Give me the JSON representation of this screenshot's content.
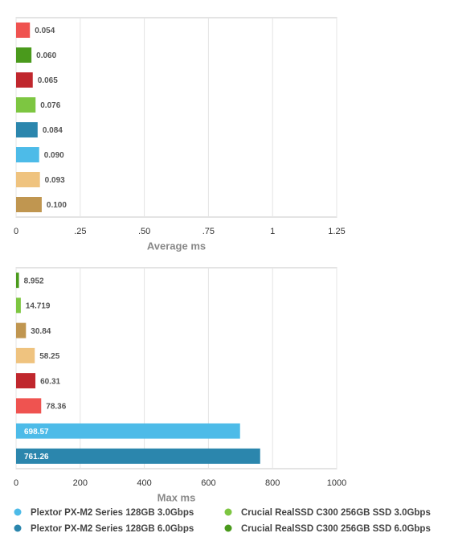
{
  "chart_data": [
    {
      "type": "bar",
      "orientation": "horizontal",
      "xlabel": "Average ms",
      "values": [
        0.054,
        0.06,
        0.065,
        0.076,
        0.084,
        0.09,
        0.093,
        0.1
      ],
      "value_labels": [
        "0.054",
        "0.060",
        "0.065",
        "0.076",
        "0.084",
        "0.090",
        "0.093",
        "0.100"
      ],
      "colors": [
        "#ef5350",
        "#4a9a1c",
        "#c0272d",
        "#7dc641",
        "#2b86ad",
        "#4dbbe8",
        "#efc37f",
        "#c09650"
      ],
      "xlim": [
        0,
        1.25
      ],
      "xticks": [
        0,
        {
          "value": 0.25,
          "label": ".25"
        },
        {
          "value": 0.5,
          "label": ".50"
        },
        {
          "value": 0.75,
          "label": ".75"
        },
        1,
        1.25
      ],
      "grid": true
    },
    {
      "type": "bar",
      "orientation": "horizontal",
      "xlabel": "Max ms",
      "values": [
        8.952,
        14.719,
        30.84,
        58.25,
        60.31,
        78.36,
        698.57,
        761.26
      ],
      "colors": [
        "#4a9a1c",
        "#7dc641",
        "#c09650",
        "#efc37f",
        "#c0272d",
        "#ef5350",
        "#4dbbe8",
        "#2b86ad"
      ],
      "xlim": [
        0,
        1000
      ],
      "xticks": [
        0,
        200,
        400,
        600,
        800,
        1000
      ],
      "grid": true
    }
  ],
  "legend": [
    {
      "name": "Plextor PX-M2 Series 128GB 3.0Gbps",
      "color": "#4dbbe8"
    },
    {
      "name": "Crucial RealSSD C300 256GB SSD 3.0Gbps",
      "color": "#7dc641"
    },
    {
      "name": "Plextor PX-M2 Series 128GB 6.0Gbps",
      "color": "#2b86ad"
    },
    {
      "name": "Crucial RealSSD C300 256GB SSD 6.0Gbps",
      "color": "#4a9a1c"
    }
  ]
}
